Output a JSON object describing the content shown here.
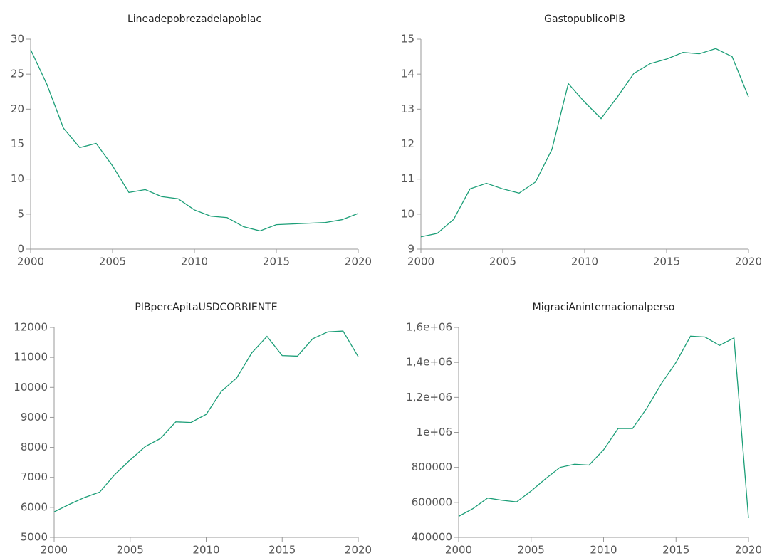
{
  "chart_data": [
    {
      "type": "line",
      "title": "Lineadepobrezadelapoblac",
      "color": "#1b9e77",
      "x": [
        2000,
        2001,
        2002,
        2003,
        2004,
        2005,
        2006,
        2007,
        2008,
        2009,
        2010,
        2011,
        2012,
        2013,
        2014,
        2015,
        2016,
        2017,
        2018,
        2019,
        2020
      ],
      "values": [
        28.5,
        23.5,
        17.3,
        14.5,
        15.1,
        11.9,
        8.1,
        8.5,
        7.5,
        7.2,
        5.6,
        4.7,
        4.5,
        3.2,
        2.6,
        3.5,
        3.6,
        3.7,
        3.8,
        4.2,
        5.1
      ],
      "xlim": [
        2000,
        2020
      ],
      "xticks": [
        2000,
        2005,
        2010,
        2015,
        2020
      ],
      "ylim": [
        0,
        30
      ],
      "yticks": [
        0,
        5,
        10,
        15,
        20,
        25,
        30
      ]
    },
    {
      "type": "line",
      "title": "GastopublicoPIB",
      "color": "#1b9e77",
      "x": [
        2000,
        2001,
        2002,
        2003,
        2004,
        2005,
        2006,
        2007,
        2008,
        2009,
        2010,
        2011,
        2012,
        2013,
        2014,
        2015,
        2016,
        2017,
        2018,
        2019,
        2020
      ],
      "values": [
        9.35,
        9.45,
        9.85,
        10.72,
        10.88,
        10.72,
        10.6,
        10.92,
        11.85,
        13.73,
        13.2,
        12.73,
        13.35,
        14.02,
        14.3,
        14.43,
        14.62,
        14.58,
        14.73,
        14.5,
        13.35
      ],
      "xlim": [
        2000,
        2020
      ],
      "xticks": [
        2000,
        2005,
        2010,
        2015,
        2020
      ],
      "ylim": [
        9,
        15
      ],
      "yticks": [
        9,
        10,
        11,
        12,
        13,
        14,
        15
      ]
    },
    {
      "type": "line",
      "title": "PIBpercApitaUSDCORRIENTE",
      "color": "#1b9e77",
      "x": [
        2000,
        2001,
        2002,
        2003,
        2004,
        2005,
        2006,
        2007,
        2008,
        2009,
        2010,
        2011,
        2012,
        2013,
        2014,
        2015,
        2016,
        2017,
        2018,
        2019,
        2020
      ],
      "values": [
        5850,
        6100,
        6330,
        6510,
        7100,
        7580,
        8030,
        8300,
        8850,
        8830,
        9100,
        9870,
        10310,
        11150,
        11700,
        11060,
        11040,
        11620,
        11850,
        11880,
        11020
      ],
      "xlim": [
        2000,
        2020
      ],
      "xticks": [
        2000,
        2005,
        2010,
        2015,
        2020
      ],
      "ylim": [
        5000,
        12000
      ],
      "yticks": [
        5000,
        6000,
        7000,
        8000,
        9000,
        10000,
        11000,
        12000
      ]
    },
    {
      "type": "line",
      "title": "MigraciAninternacionalperso",
      "color": "#1b9e77",
      "x": [
        2000,
        2001,
        2002,
        2003,
        2004,
        2005,
        2006,
        2007,
        2008,
        2009,
        2010,
        2011,
        2012,
        2013,
        2014,
        2015,
        2016,
        2017,
        2018,
        2019,
        2020
      ],
      "values": [
        520000,
        565000,
        625000,
        612000,
        603000,
        665000,
        735000,
        800000,
        818000,
        813000,
        900000,
        1022000,
        1022000,
        1140000,
        1280000,
        1400000,
        1550000,
        1545000,
        1497000,
        1540000,
        510000
      ],
      "xlim": [
        2000,
        2020
      ],
      "xticks": [
        2000,
        2005,
        2010,
        2015,
        2020
      ],
      "ylim": [
        400000,
        1600000
      ],
      "yticks": [
        400000,
        600000,
        800000,
        {
          "value": 1000000,
          "label": "1e+06"
        },
        {
          "value": 1200000,
          "label": "1,2e+06"
        },
        {
          "value": 1400000,
          "label": "1,4e+06"
        },
        {
          "value": 1600000,
          "label": "1,6e+06"
        }
      ]
    }
  ]
}
